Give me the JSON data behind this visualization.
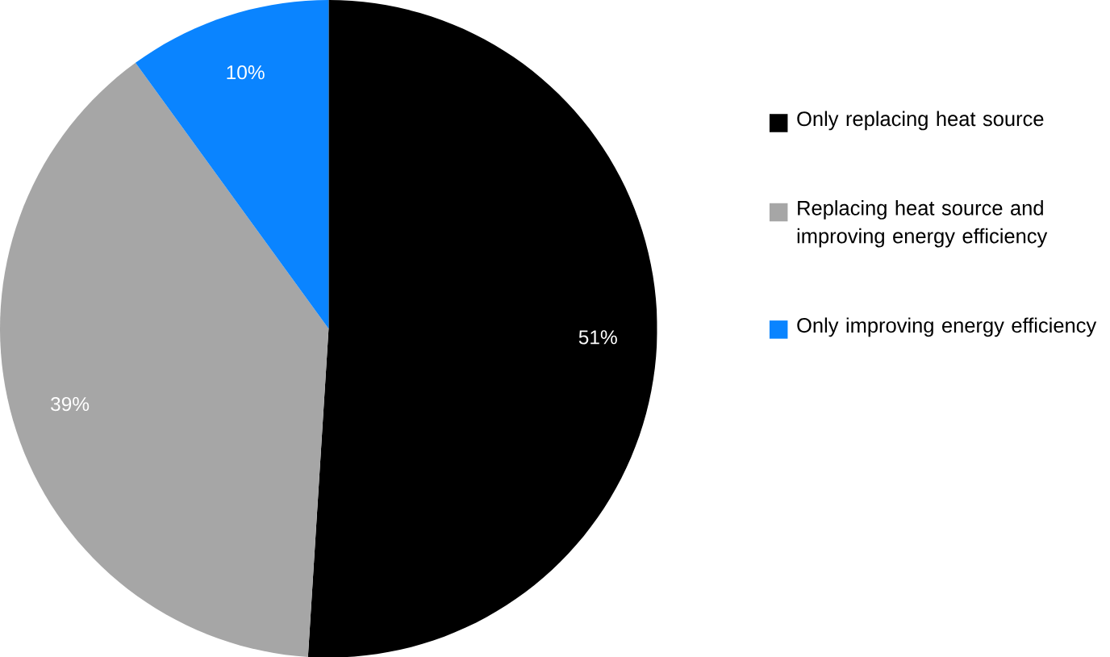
{
  "chart_data": {
    "type": "pie",
    "categories": [
      "Only replacing heat source",
      "Replacing heat source and improving energy efficiency",
      "Only improving energy efficiency"
    ],
    "values": [
      51,
      39,
      10
    ],
    "colors": [
      "#000000",
      "#a6a6a6",
      "#0a84ff"
    ],
    "value_labels": [
      "51%",
      "39%",
      "10%"
    ],
    "legend": "right"
  }
}
